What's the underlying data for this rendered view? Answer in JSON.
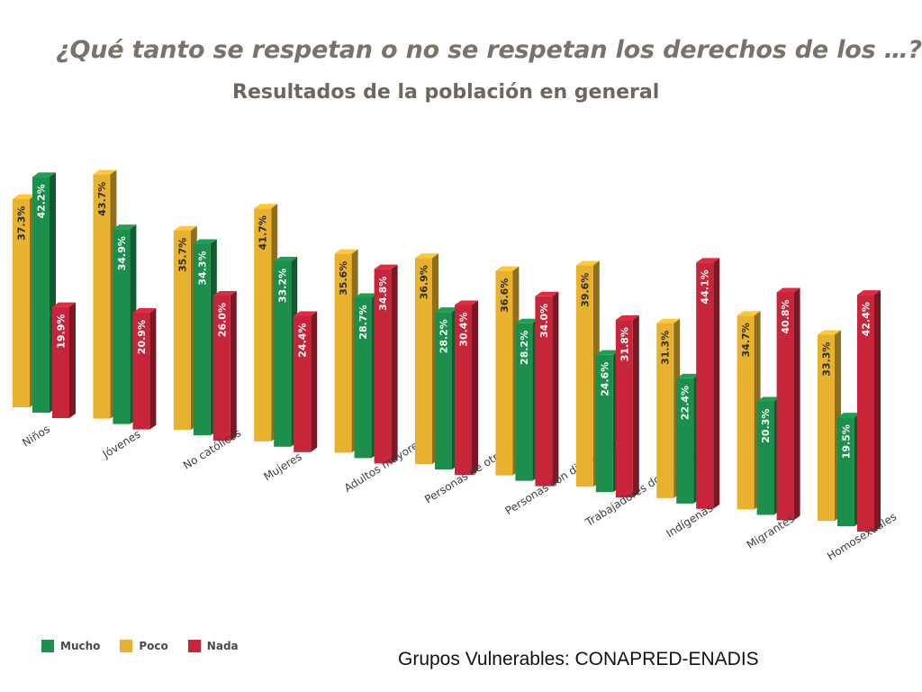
{
  "header": {
    "title": "¿Qué tanto se respetan o no se respetan los derechos de los …?",
    "subtitle": "Resultados de la población en general"
  },
  "source": "Grupos Vulnerables: CONAPRED-ENADIS",
  "colors": {
    "Mucho": "#1b8f4b",
    "Poco": "#e8b22e",
    "Nada": "#c7263a"
  },
  "chart_data": {
    "type": "bar",
    "title": "¿Qué tanto se respetan o no se respetan los derechos de los …?",
    "subtitle": "Resultados de la población en general",
    "categories": [
      "Niños",
      "Jóvenes",
      "No católicos",
      "Mujeres",
      "Adultos mayores",
      "Personas de otra raza",
      "Personas con discapacidad",
      "Trabajadores domésticos",
      "Indígenas",
      "Migrantes",
      "Homosexuales"
    ],
    "series": [
      {
        "name": "Poco",
        "values": [
          37.3,
          43.7,
          35.7,
          41.7,
          35.6,
          36.9,
          36.6,
          39.6,
          31.3,
          34.7,
          33.3
        ]
      },
      {
        "name": "Mucho",
        "values": [
          42.2,
          34.9,
          34.3,
          33.2,
          28.7,
          28.2,
          28.2,
          24.6,
          22.4,
          20.3,
          19.5
        ]
      },
      {
        "name": "Nada",
        "values": [
          19.9,
          20.9,
          26.0,
          24.4,
          34.8,
          30.4,
          34.0,
          31.8,
          44.1,
          40.8,
          42.4
        ]
      }
    ],
    "legend": [
      "Mucho",
      "Poco",
      "Nada"
    ],
    "legend_position": "bottom-left",
    "grid": false,
    "ylim": [
      0,
      50
    ]
  }
}
